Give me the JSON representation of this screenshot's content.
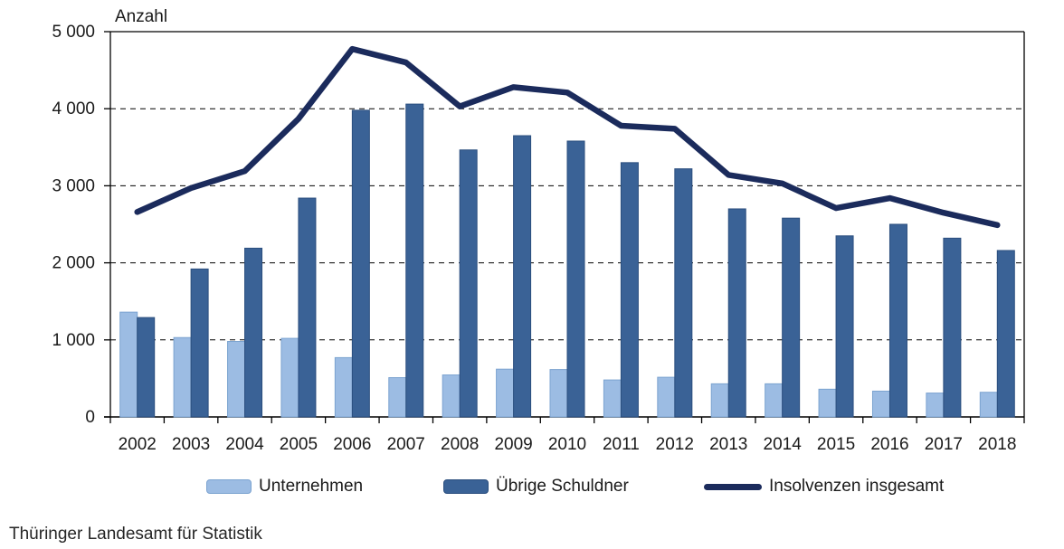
{
  "chart_data": {
    "type": "bar+line combo",
    "title": "",
    "ylabel": "Anzahl",
    "xlabel": "",
    "categories": [
      "2002",
      "2003",
      "2004",
      "2005",
      "2006",
      "2007",
      "2008",
      "2009",
      "2010",
      "2011",
      "2012",
      "2013",
      "2014",
      "2015",
      "2016",
      "2017",
      "2018"
    ],
    "series": [
      {
        "name": "Unternehmen",
        "type": "bar",
        "color": "#9cbce3",
        "border_color": "#7ba3d0",
        "values": [
          1360,
          1030,
          980,
          1020,
          770,
          510,
          545,
          620,
          615,
          480,
          515,
          430,
          430,
          360,
          335,
          310,
          320
        ]
      },
      {
        "name": "Übrige Schuldner",
        "type": "bar",
        "color": "#3a6296",
        "border_color": "#2b4e7e",
        "values": [
          1290,
          1920,
          2190,
          2840,
          3980,
          4060,
          3465,
          3650,
          3580,
          3300,
          3220,
          2700,
          2580,
          2350,
          2500,
          2320,
          2160
        ]
      },
      {
        "name": "Insolvenzen insgesamt",
        "type": "line",
        "color": "#1b2b5c",
        "values": [
          2660,
          2970,
          3190,
          3870,
          4775,
          4600,
          4030,
          4280,
          4210,
          3780,
          3740,
          3140,
          3030,
          2710,
          2840,
          2650,
          2490
        ]
      }
    ],
    "ylim": [
      0,
      5000
    ],
    "y_tick_step": 1000,
    "y_tick_labels": [
      "0",
      "1 000",
      "2 000",
      "3 000",
      "4 000",
      "5 000"
    ],
    "grid": "horizontal dashed gridlines at each 1000; solid top border at 5000; solid plot frame left/right/bottom",
    "legend_position": "bottom"
  },
  "legend": {
    "items": [
      {
        "label": "Unternehmen",
        "marker": "bar-swatch"
      },
      {
        "label": "Übrige Schuldner",
        "marker": "bar-swatch"
      },
      {
        "label": "Insolvenzen insgesamt",
        "marker": "line-swatch"
      }
    ]
  },
  "footer": {
    "source": "Thüringer Landesamt für Statistik"
  },
  "colors": {
    "bar_light": "#9cbce3",
    "bar_light_border": "#7ba3d0",
    "bar_dark": "#3a6296",
    "bar_dark_border": "#2b4e7e",
    "line_navy": "#1b2b5c",
    "axis": "#000000",
    "text": "#1a1a1a"
  }
}
